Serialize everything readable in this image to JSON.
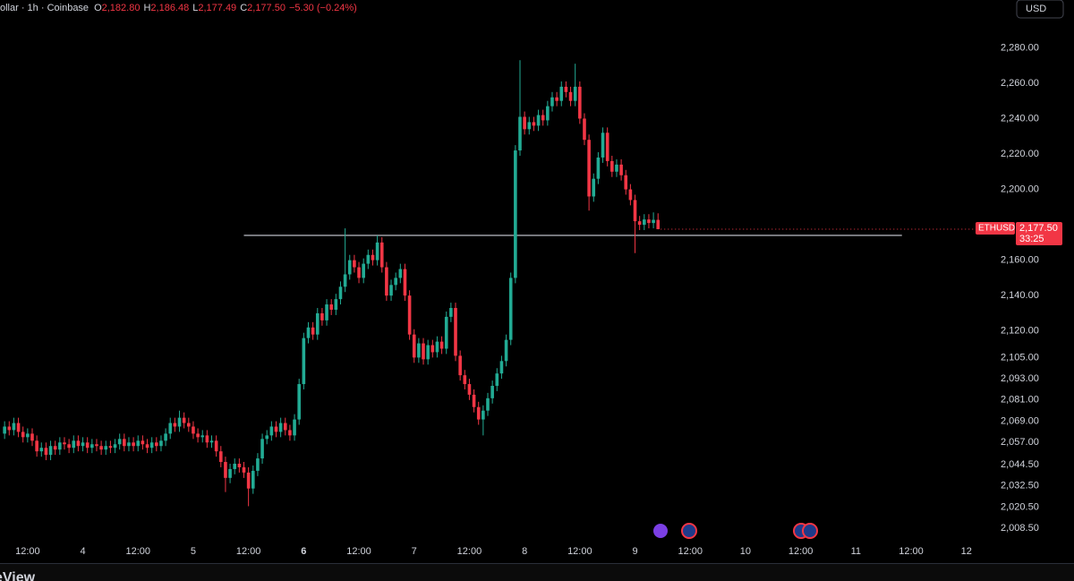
{
  "header": {
    "source": "ollar · 1h · Coinbase",
    "fields": [
      {
        "key": "O",
        "value": "2,182.80"
      },
      {
        "key": "H",
        "value": "2,186.48"
      },
      {
        "key": "L",
        "value": "2,177.49"
      },
      {
        "key": "C",
        "value": "2,177.50"
      }
    ],
    "change": "−5.30 (−0.24%)"
  },
  "currency": "USD",
  "price_tag": {
    "symbol": "ETHUSD",
    "price": "2,177.50",
    "countdown": "33:25"
  },
  "footer": "eView",
  "chart_data": {
    "type": "candlestick",
    "up_color": "#22ab94",
    "down_color": "#f23645",
    "xlim": [
      -18,
      194
    ],
    "ylim": [
      2001,
      2307
    ],
    "xticks": [
      {
        "value": -12,
        "label": "12:00"
      },
      {
        "value": 0,
        "label": "4"
      },
      {
        "value": 12,
        "label": "12:00"
      },
      {
        "value": 24,
        "label": "5"
      },
      {
        "value": 36,
        "label": "12:00"
      },
      {
        "value": 48,
        "label": "6"
      },
      {
        "value": 60,
        "label": "12:00"
      },
      {
        "value": 72,
        "label": "7"
      },
      {
        "value": 84,
        "label": "12:00"
      },
      {
        "value": 96,
        "label": "8"
      },
      {
        "value": 108,
        "label": "12:00"
      },
      {
        "value": 120,
        "label": "9"
      },
      {
        "value": 132,
        "label": "12:00"
      },
      {
        "value": 144,
        "label": "10"
      },
      {
        "value": 156,
        "label": "12:00"
      },
      {
        "value": 168,
        "label": "11"
      },
      {
        "value": 180,
        "label": "12:00"
      },
      {
        "value": 192,
        "label": "12"
      }
    ],
    "yticks": [
      {
        "value": 2280,
        "label": "2,280.00"
      },
      {
        "value": 2260,
        "label": "2,260.00"
      },
      {
        "value": 2240,
        "label": "2,240.00"
      },
      {
        "value": 2220,
        "label": "2,220.00"
      },
      {
        "value": 2200,
        "label": "2,200.00"
      },
      {
        "value": 2160,
        "label": "2,160.00"
      },
      {
        "value": 2140,
        "label": "2,140.00"
      },
      {
        "value": 2120,
        "label": "2,120.00"
      },
      {
        "value": 2105,
        "label": "2,105.00"
      },
      {
        "value": 2093,
        "label": "2,093.00"
      },
      {
        "value": 2081,
        "label": "2,081.00"
      },
      {
        "value": 2069,
        "label": "2,069.00"
      },
      {
        "value": 2057,
        "label": "2,057.00"
      },
      {
        "value": 2044.5,
        "label": "2,044.50"
      },
      {
        "value": 2032.5,
        "label": "2,032.50"
      },
      {
        "value": 2020.5,
        "label": "2,020.50"
      },
      {
        "value": 2008.5,
        "label": "2,008.50"
      }
    ],
    "hline": {
      "value": 2174,
      "x": [
        35,
        178
      ],
      "color": "#d1d4dc"
    },
    "x": [
      -17,
      -16,
      -15,
      -14,
      -13,
      -12,
      -11,
      -10,
      -9,
      -8,
      -7,
      -6,
      -5,
      -4,
      -3,
      -2,
      -1,
      0,
      1,
      2,
      3,
      4,
      5,
      6,
      7,
      8,
      9,
      10,
      11,
      12,
      13,
      14,
      15,
      16,
      17,
      18,
      19,
      20,
      21,
      22,
      23,
      24,
      25,
      26,
      27,
      28,
      29,
      30,
      31,
      32,
      33,
      34,
      35,
      36,
      37,
      38,
      39,
      40,
      41,
      42,
      43,
      44,
      45,
      46,
      47,
      48,
      49,
      50,
      51,
      52,
      53,
      54,
      55,
      56,
      57,
      58,
      59,
      60,
      61,
      62,
      63,
      64,
      65,
      66,
      67,
      68,
      69,
      70,
      71,
      72,
      73,
      74,
      75,
      76,
      77,
      78,
      79,
      80,
      81,
      82,
      83,
      84,
      85,
      86,
      87,
      88,
      89,
      90,
      91,
      92,
      93,
      94,
      95,
      96,
      97,
      98,
      99,
      100,
      101,
      102,
      103,
      104,
      105,
      106,
      107,
      108,
      109,
      110,
      111,
      112,
      113,
      114,
      115,
      116,
      117,
      118,
      119,
      120,
      121,
      122,
      123,
      124,
      125
    ],
    "open": [
      2062,
      2066,
      2064,
      2068,
      2063,
      2060,
      2062,
      2058,
      2052,
      2054,
      2050,
      2055,
      2053,
      2057,
      2056,
      2054,
      2058,
      2055,
      2057,
      2054,
      2056,
      2055,
      2053,
      2055,
      2054,
      2056,
      2059,
      2055,
      2057,
      2055,
      2058,
      2056,
      2054,
      2057,
      2055,
      2058,
      2062,
      2068,
      2066,
      2071,
      2068,
      2066,
      2062,
      2060,
      2061,
      2057,
      2058,
      2052,
      2046,
      2037,
      2042,
      2045,
      2043,
      2040,
      2031,
      2041,
      2048,
      2059,
      2061,
      2066,
      2063,
      2068,
      2064,
      2061,
      2070,
      2090,
      2116,
      2122,
      2118,
      2130,
      2126,
      2135,
      2132,
      2138,
      2145,
      2152,
      2160,
      2156,
      2150,
      2158,
      2163,
      2160,
      2170,
      2156,
      2140,
      2146,
      2150,
      2155,
      2140,
      2118,
      2105,
      2113,
      2104,
      2112,
      2108,
      2114,
      2110,
      2128,
      2133,
      2106,
      2095,
      2090,
      2084,
      2077,
      2070,
      2075,
      2082,
      2089,
      2096,
      2103,
      2115,
      2150,
      2222,
      2241,
      2234,
      2238,
      2236,
      2242,
      2239,
      2247,
      2252,
      2250,
      2258,
      2255,
      2250,
      2258,
      2240,
      2228,
      2196,
      2206,
      2218,
      2232,
      2216,
      2210,
      2214,
      2208,
      2200,
      2194,
      2182,
      2180,
      2183,
      2181,
      2182.8
    ],
    "high": [
      2069,
      2069,
      2071,
      2071,
      2066,
      2065,
      2065,
      2061,
      2057,
      2057,
      2058,
      2058,
      2060,
      2060,
      2059,
      2061,
      2061,
      2060,
      2060,
      2059,
      2059,
      2058,
      2058,
      2058,
      2059,
      2062,
      2062,
      2060,
      2060,
      2061,
      2061,
      2059,
      2060,
      2060,
      2061,
      2065,
      2071,
      2071,
      2075,
      2074,
      2071,
      2069,
      2065,
      2064,
      2064,
      2061,
      2061,
      2055,
      2049,
      2045,
      2048,
      2048,
      2046,
      2043,
      2044,
      2051,
      2062,
      2064,
      2069,
      2069,
      2071,
      2071,
      2067,
      2073,
      2093,
      2119,
      2125,
      2125,
      2133,
      2133,
      2138,
      2138,
      2141,
      2148,
      2178,
      2163,
      2163,
      2159,
      2161,
      2166,
      2166,
      2174,
      2173,
      2159,
      2149,
      2153,
      2158,
      2158,
      2143,
      2121,
      2116,
      2116,
      2115,
      2115,
      2117,
      2117,
      2131,
      2136,
      2136,
      2109,
      2098,
      2093,
      2087,
      2080,
      2078,
      2085,
      2092,
      2099,
      2106,
      2118,
      2153,
      2225,
      2273,
      2244,
      2241,
      2241,
      2245,
      2245,
      2250,
      2255,
      2255,
      2261,
      2261,
      2258,
      2271,
      2261,
      2243,
      2231,
      2209,
      2221,
      2235,
      2235,
      2219,
      2217,
      2217,
      2211,
      2203,
      2197,
      2185,
      2186,
      2186,
      2187,
      2186.48
    ],
    "low": [
      2059,
      2061,
      2061,
      2060,
      2057,
      2057,
      2055,
      2049,
      2049,
      2047,
      2047,
      2050,
      2050,
      2053,
      2051,
      2051,
      2052,
      2052,
      2051,
      2051,
      2052,
      2050,
      2050,
      2051,
      2051,
      2053,
      2052,
      2052,
      2052,
      2052,
      2053,
      2051,
      2051,
      2052,
      2052,
      2055,
      2059,
      2063,
      2063,
      2065,
      2063,
      2059,
      2057,
      2057,
      2054,
      2054,
      2049,
      2043,
      2029,
      2034,
      2039,
      2040,
      2037,
      2021,
      2028,
      2038,
      2045,
      2056,
      2058,
      2060,
      2060,
      2061,
      2058,
      2058,
      2067,
      2087,
      2113,
      2115,
      2115,
      2123,
      2123,
      2129,
      2129,
      2135,
      2142,
      2149,
      2153,
      2147,
      2147,
      2155,
      2157,
      2157,
      2153,
      2137,
      2137,
      2143,
      2147,
      2137,
      2115,
      2102,
      2102,
      2101,
      2101,
      2105,
      2105,
      2107,
      2107,
      2125,
      2103,
      2092,
      2087,
      2081,
      2074,
      2067,
      2061,
      2072,
      2079,
      2086,
      2093,
      2100,
      2112,
      2147,
      2219,
      2231,
      2231,
      2233,
      2233,
      2236,
      2236,
      2244,
      2247,
      2247,
      2252,
      2247,
      2247,
      2237,
      2225,
      2188,
      2193,
      2203,
      2215,
      2213,
      2207,
      2207,
      2205,
      2197,
      2191,
      2164,
      2177,
      2177,
      2178,
      2178,
      2177.49
    ],
    "close": [
      2066,
      2064,
      2068,
      2063,
      2060,
      2062,
      2058,
      2052,
      2054,
      2050,
      2055,
      2053,
      2057,
      2056,
      2054,
      2058,
      2055,
      2057,
      2054,
      2056,
      2055,
      2053,
      2055,
      2054,
      2056,
      2059,
      2055,
      2057,
      2055,
      2058,
      2056,
      2054,
      2057,
      2055,
      2058,
      2062,
      2068,
      2066,
      2071,
      2068,
      2066,
      2062,
      2060,
      2061,
      2057,
      2058,
      2052,
      2046,
      2037,
      2042,
      2045,
      2043,
      2040,
      2031,
      2041,
      2048,
      2059,
      2061,
      2066,
      2063,
      2068,
      2064,
      2061,
      2070,
      2090,
      2116,
      2122,
      2118,
      2130,
      2126,
      2135,
      2132,
      2138,
      2145,
      2152,
      2160,
      2156,
      2150,
      2158,
      2163,
      2160,
      2170,
      2156,
      2140,
      2146,
      2150,
      2155,
      2140,
      2118,
      2105,
      2113,
      2104,
      2112,
      2108,
      2114,
      2110,
      2128,
      2133,
      2106,
      2095,
      2090,
      2084,
      2077,
      2070,
      2075,
      2082,
      2089,
      2096,
      2103,
      2115,
      2150,
      2222,
      2241,
      2234,
      2238,
      2236,
      2242,
      2239,
      2247,
      2252,
      2250,
      2258,
      2255,
      2250,
      2258,
      2240,
      2228,
      2196,
      2206,
      2218,
      2232,
      2216,
      2210,
      2214,
      2208,
      2200,
      2194,
      2182,
      2180,
      2183,
      2181,
      2182.8,
      2177.5
    ]
  }
}
